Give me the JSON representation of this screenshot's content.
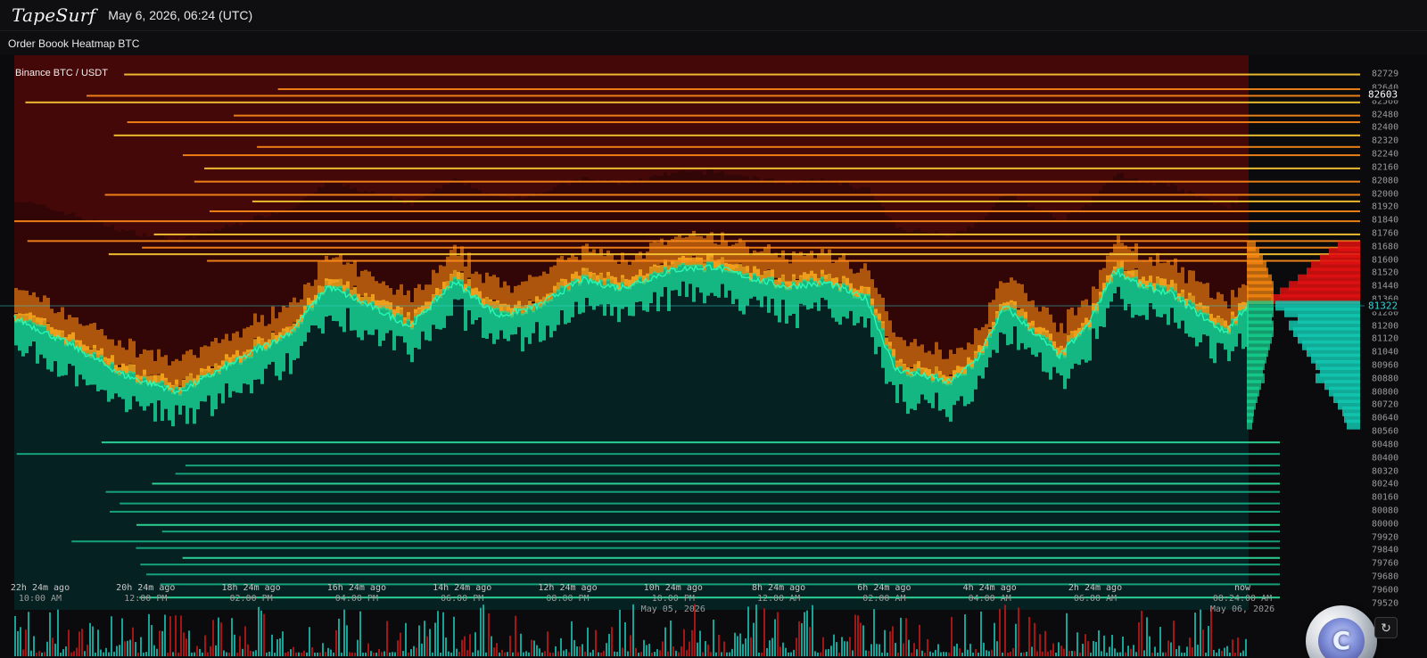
{
  "header": {
    "logo": "TapeSurf",
    "datetime": "May 6, 2026, 06:24 (UTC)"
  },
  "subtitle": "Order Boook Heatmap BTC",
  "pair": "Binance BTC / USDT",
  "icons": {
    "sync_button": "sync-icon",
    "badge": "exchange-coin-badge"
  },
  "colors": {
    "bid_levels": "#16d89a",
    "ask_levels": "#ff9d1a",
    "ask_hot": "#ffcc33",
    "deep_ask": "#8a1010",
    "current_price_label": "#35d3d3",
    "highlight_price_label": "#ffffff",
    "volume_buy": "#18c0b0",
    "volume_sell": "#c01818"
  },
  "chart_data": {
    "type": "heatmap",
    "title": "Order Boook Heatmap BTC",
    "market": "Binance BTC / USDT",
    "ylim": [
      79480,
      82840
    ],
    "y_ticks": [
      82729,
      82640,
      82560,
      82480,
      82400,
      82320,
      82240,
      82160,
      82080,
      82000,
      81920,
      81840,
      81760,
      81680,
      81600,
      81520,
      81440,
      81360,
      81280,
      81200,
      81120,
      81040,
      80960,
      80880,
      80800,
      80720,
      80640,
      80560,
      80480,
      80400,
      80320,
      80240,
      80160,
      80080,
      80000,
      79920,
      79840,
      79760,
      79680,
      79600,
      79520
    ],
    "current_price": 81322,
    "highlight_price": 82603,
    "x_ticks": [
      {
        "label": "22h 24m ago",
        "time": "10:00 AM",
        "date": ""
      },
      {
        "label": "20h 24m ago",
        "time": "12:00 PM",
        "date": ""
      },
      {
        "label": "18h 24m ago",
        "time": "02:00 PM",
        "date": ""
      },
      {
        "label": "16h 24m ago",
        "time": "04:00 PM",
        "date": ""
      },
      {
        "label": "14h 24m ago",
        "time": "06:00 PM",
        "date": ""
      },
      {
        "label": "12h 24m ago",
        "time": "08:00 PM",
        "date": ""
      },
      {
        "label": "10h 24m ago",
        "time": "10:00 PM",
        "date": "May 05, 2026"
      },
      {
        "label": "8h 24m ago",
        "time": "12:00 AM",
        "date": ""
      },
      {
        "label": "6h 24m ago",
        "time": "02:00 AM",
        "date": ""
      },
      {
        "label": "4h 24m ago",
        "time": "04:00 AM",
        "date": ""
      },
      {
        "label": "2h 24m ago",
        "time": "06:00 AM",
        "date": ""
      },
      {
        "label": "now",
        "time": "08:24:00 AM",
        "date": "May 06, 2026"
      }
    ],
    "price_path_hours_ago": [
      22.4,
      21.4,
      20.4,
      19.4,
      18.4,
      17.4,
      16.7,
      16.0,
      15.2,
      14.4,
      13.6,
      12.9,
      12.1,
      11.4,
      10.4,
      9.7,
      8.9,
      8.4,
      7.6,
      6.9,
      6.4,
      5.4,
      4.9,
      4.4,
      3.4,
      2.9,
      2.4,
      1.9,
      1.4,
      0.4,
      0.0
    ],
    "price_path_values": [
      81250,
      81090,
      80900,
      80800,
      80980,
      81160,
      81440,
      81330,
      81200,
      81470,
      81260,
      81320,
      81480,
      81430,
      81540,
      81560,
      81480,
      81440,
      81460,
      81360,
      80940,
      80860,
      81000,
      81320,
      81020,
      81200,
      81540,
      81440,
      81400,
      81160,
      81322
    ],
    "book_profile_prices": [
      81680,
      81640,
      81600,
      81560,
      81520,
      81480,
      81440,
      81400,
      81360,
      81320,
      81280,
      81240,
      81200,
      81160,
      81120,
      81080,
      81040,
      81000,
      80960,
      80920,
      80880,
      80840,
      80800,
      80760,
      80720,
      80680,
      80640,
      80600
    ],
    "book_profile_sizes": [
      0.25,
      0.35,
      0.45,
      0.55,
      0.6,
      0.7,
      0.8,
      0.9,
      1.0,
      0.95,
      0.85,
      0.7,
      0.8,
      0.75,
      0.7,
      0.65,
      0.6,
      0.55,
      0.5,
      0.45,
      0.5,
      0.4,
      0.35,
      0.3,
      0.25,
      0.2,
      0.18,
      0.15
    ]
  }
}
